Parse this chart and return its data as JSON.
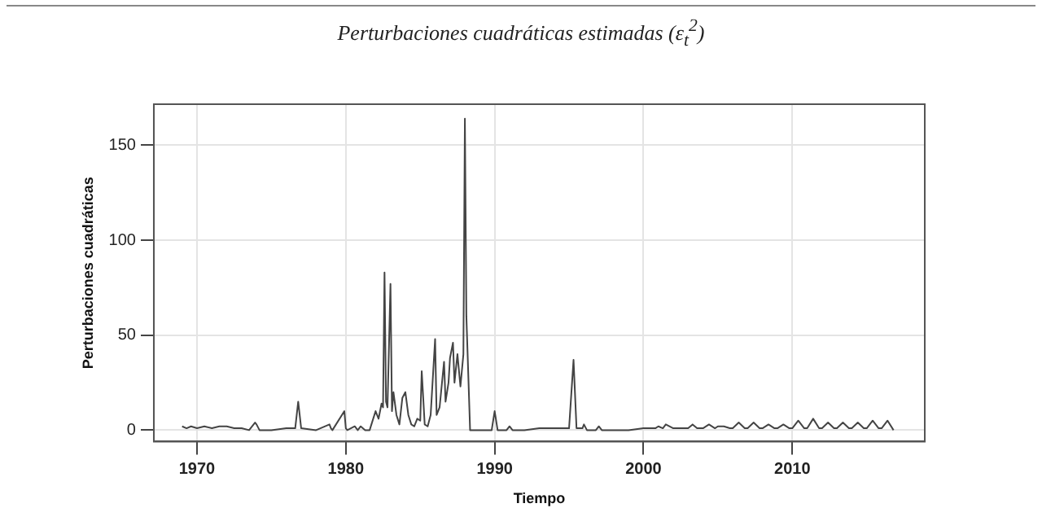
{
  "chart_data": {
    "type": "line",
    "title": "Perturbaciones cuadráticas estimadas (ε$_{t}$$^{2}$)",
    "xlabel": "Tiempo",
    "ylabel": "Perturbaciones cuadráticas",
    "xlim": [
      1967.1,
      2018.9
    ],
    "xticks": [
      1970,
      1980,
      1990,
      2000,
      2010
    ],
    "ylim": [
      -6,
      171.6
    ],
    "yticks": [
      0,
      50,
      100,
      150
    ],
    "grid": true,
    "series": [
      {
        "color": "#444444",
        "x": [
          1969.0,
          1969.3,
          1969.6,
          1970.0,
          1970.5,
          1971.0,
          1971.5,
          1972.0,
          1972.5,
          1973.0,
          1973.5,
          1973.9,
          1974.0,
          1974.2,
          1975.0,
          1976.0,
          1976.6,
          1976.8,
          1977.0,
          1978.0,
          1978.9,
          1979.0,
          1979.1,
          1979.9,
          1980.0,
          1980.1,
          1980.6,
          1980.8,
          1981.0,
          1981.3,
          1981.6,
          1982.0,
          1982.2,
          1982.4,
          1982.5,
          1982.6,
          1982.7,
          1982.8,
          1983.0,
          1983.1,
          1983.2,
          1983.4,
          1983.6,
          1983.8,
          1984.0,
          1984.2,
          1984.4,
          1984.6,
          1984.8,
          1985.0,
          1985.1,
          1985.3,
          1985.5,
          1985.7,
          1986.0,
          1986.1,
          1986.3,
          1986.6,
          1986.7,
          1986.9,
          1987.0,
          1987.2,
          1987.3,
          1987.5,
          1987.7,
          1987.9,
          1988.0,
          1988.1,
          1988.35,
          1988.6,
          1989.0,
          1989.8,
          1990.0,
          1990.2,
          1990.8,
          1991.0,
          1991.2,
          1992.0,
          1993.0,
          1994.0,
          1995.0,
          1995.3,
          1995.5,
          1995.9,
          1996.0,
          1996.2,
          1996.8,
          1997.0,
          1997.2,
          1998.0,
          1999.0,
          2000.0,
          2000.8,
          2001.0,
          2001.3,
          2001.5,
          2002.0,
          2002.5,
          2003.0,
          2003.3,
          2003.6,
          2004.0,
          2004.4,
          2004.8,
          2005.0,
          2005.4,
          2005.8,
          2006.0,
          2006.4,
          2006.8,
          2007.0,
          2007.4,
          2007.8,
          2008.0,
          2008.4,
          2008.8,
          2009.0,
          2009.4,
          2009.8,
          2010.0,
          2010.4,
          2010.8,
          2011.0,
          2011.4,
          2011.8,
          2012.0,
          2012.4,
          2012.8,
          2013.0,
          2013.4,
          2013.8,
          2014.0,
          2014.4,
          2014.8,
          2015.0,
          2015.4,
          2015.8,
          2016.0,
          2016.4,
          2016.8
        ],
        "values": [
          2,
          1,
          2,
          1,
          2,
          1,
          2,
          2,
          1,
          1,
          0,
          4,
          3,
          0,
          0,
          1,
          1,
          15,
          1,
          0,
          3,
          1,
          0,
          10,
          1,
          0,
          2,
          0,
          2,
          0,
          0,
          10,
          6,
          14,
          12,
          83,
          15,
          12,
          77,
          10,
          20,
          8,
          3,
          17,
          20,
          8,
          3,
          2,
          6,
          5,
          31,
          3,
          2,
          8,
          48,
          8,
          12,
          36,
          15,
          25,
          38,
          46,
          25,
          40,
          23,
          40,
          164,
          60,
          0,
          0,
          0,
          0,
          10,
          0,
          0,
          2,
          0,
          0,
          1,
          1,
          1,
          37,
          1,
          1,
          3,
          0,
          0,
          2,
          0,
          0,
          0,
          1,
          1,
          2,
          1,
          3,
          1,
          1,
          1,
          3,
          1,
          1,
          3,
          1,
          2,
          2,
          1,
          1,
          4,
          1,
          1,
          4,
          1,
          1,
          3,
          1,
          1,
          3,
          1,
          1,
          5,
          1,
          1,
          6,
          1,
          1,
          4,
          1,
          1,
          4,
          1,
          1,
          4,
          1,
          1,
          5,
          1,
          1,
          5,
          0
        ]
      }
    ]
  }
}
